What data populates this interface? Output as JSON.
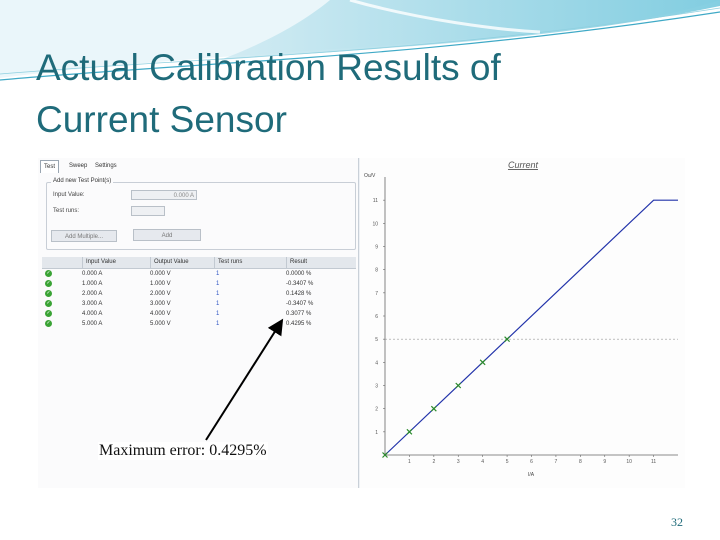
{
  "slide": {
    "title_line1": "Actual Calibration Results of",
    "title_line2": "Current Sensor",
    "annotation": "Maximum error: 0.4295%",
    "page_number": "32"
  },
  "app": {
    "tabs": [
      "Test",
      "Sweep",
      "Settings"
    ],
    "group_title": "Add new Test Point(s)",
    "input_value_label": "Input Value:",
    "input_value": "0.000 A",
    "test_runs_label": "Test runs:",
    "test_runs_value": "",
    "add_multiple_label": "Add Multiple...",
    "add_label": "Add",
    "table": {
      "headers": [
        "Input Value",
        "Output Value",
        "Test runs",
        "Result"
      ],
      "rows": [
        [
          "0.000 A",
          "0.000 V",
          "1",
          "0.0000 %"
        ],
        [
          "1.000 A",
          "1.000 V",
          "1",
          "-0.3407 %"
        ],
        [
          "2.000 A",
          "2.000 V",
          "1",
          "0.1428 %"
        ],
        [
          "3.000 A",
          "3.000 V",
          "1",
          "-0.3407 %"
        ],
        [
          "4.000 A",
          "4.000 V",
          "1",
          "0.3077 %"
        ],
        [
          "5.000 A",
          "5.000 V",
          "1",
          "0.4295 %"
        ]
      ]
    }
  },
  "chart_data": {
    "type": "line",
    "title": "Current",
    "xlabel": "I/A",
    "ylabel": "Ou/V",
    "xlim": [
      0,
      12
    ],
    "ylim": [
      0,
      12
    ],
    "xticks": [
      1,
      2,
      3,
      4,
      5,
      6,
      7,
      8,
      9,
      10,
      11
    ],
    "yticks": [
      1,
      2,
      3,
      4,
      5,
      6,
      7,
      8,
      9,
      10,
      11
    ],
    "reference_line_y": 5,
    "series": [
      {
        "x": [
          0,
          11,
          12
        ],
        "y": [
          0,
          11,
          11
        ],
        "color": "#2233aa"
      }
    ],
    "points": {
      "x": [
        0,
        1,
        2,
        3,
        4,
        5
      ],
      "y": [
        0,
        1,
        2,
        3,
        4,
        5
      ],
      "color": "#2a8a2a"
    },
    "grid": false
  }
}
